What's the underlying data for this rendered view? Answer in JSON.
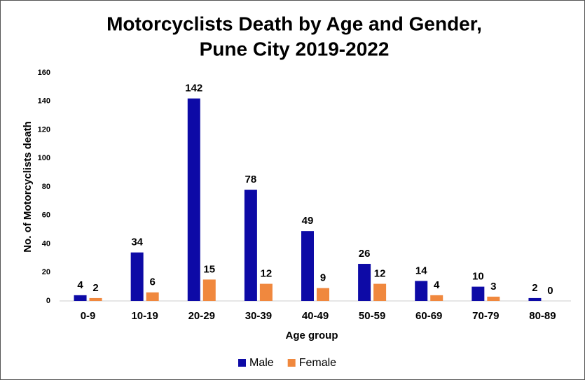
{
  "chart_data": {
    "type": "bar",
    "title": [
      "Motorcyclists Death by Age and Gender,",
      "Pune City 2019-2022"
    ],
    "x_label": "Age group",
    "y_label": "No. of Motorcyclists death",
    "categories": [
      "0-9",
      "10-19",
      "20-29",
      "30-39",
      "40-49",
      "50-59",
      "60-69",
      "70-79",
      "80-89"
    ],
    "series": [
      {
        "name": "Male",
        "color": "#0d0aa6",
        "values": [
          4,
          34,
          142,
          78,
          49,
          26,
          14,
          10,
          2
        ]
      },
      {
        "name": "Female",
        "color": "#f0883e",
        "values": [
          2,
          6,
          15,
          12,
          9,
          12,
          4,
          3,
          0
        ]
      }
    ],
    "ylim": [
      0,
      160
    ],
    "yticks": [
      0,
      20,
      40,
      60,
      80,
      100,
      120,
      140,
      160
    ],
    "grid": false,
    "legend": "bottom"
  }
}
